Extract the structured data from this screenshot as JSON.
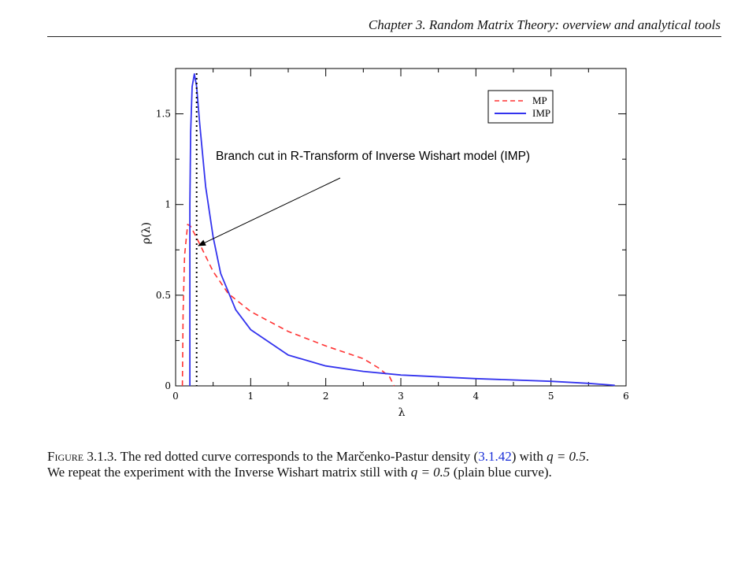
{
  "header": {
    "running_title": "Chapter 3.  Random Matrix Theory: overview and analytical tools"
  },
  "figure": {
    "annotation": "Branch cut in R-Transform of Inverse Wishart model (IMP)",
    "colors": {
      "mp": "#ff3333",
      "imp": "#3333ee",
      "branch_cut": "#000000",
      "arrow": "#000000"
    },
    "branch_cut_x": 0.28
  },
  "chart_data": {
    "type": "line",
    "title": "",
    "xlabel": "λ",
    "ylabel": "ρ(λ)",
    "xlim": [
      0,
      6
    ],
    "ylim": [
      0,
      1.75
    ],
    "x_ticks": [
      "0",
      "1",
      "2",
      "3",
      "4",
      "5",
      "6"
    ],
    "y_ticks": [
      "0",
      "0.5",
      "1",
      "1.5"
    ],
    "legend_position": "top-right",
    "grid": false,
    "series": [
      {
        "name": "MP",
        "style": "dashed",
        "color": "#ff3333",
        "points": [
          [
            0.09,
            0.0
          ],
          [
            0.1,
            0.4
          ],
          [
            0.12,
            0.72
          ],
          [
            0.16,
            0.89
          ],
          [
            0.2,
            0.88
          ],
          [
            0.3,
            0.8
          ],
          [
            0.5,
            0.63
          ],
          [
            0.7,
            0.51
          ],
          [
            1.0,
            0.41
          ],
          [
            1.5,
            0.3
          ],
          [
            2.0,
            0.22
          ],
          [
            2.5,
            0.15
          ],
          [
            2.7,
            0.1
          ],
          [
            2.85,
            0.05
          ],
          [
            2.91,
            0.0
          ]
        ]
      },
      {
        "name": "IMP",
        "style": "solid",
        "color": "#3333ee",
        "points": [
          [
            0.19,
            0.0
          ],
          [
            0.19,
            1.0
          ],
          [
            0.2,
            1.4
          ],
          [
            0.22,
            1.65
          ],
          [
            0.25,
            1.72
          ],
          [
            0.28,
            1.65
          ],
          [
            0.32,
            1.45
          ],
          [
            0.4,
            1.1
          ],
          [
            0.5,
            0.82
          ],
          [
            0.6,
            0.62
          ],
          [
            0.8,
            0.42
          ],
          [
            1.0,
            0.31
          ],
          [
            1.5,
            0.17
          ],
          [
            2.0,
            0.11
          ],
          [
            2.5,
            0.08
          ],
          [
            3.0,
            0.06
          ],
          [
            4.0,
            0.04
          ],
          [
            5.0,
            0.025
          ],
          [
            5.5,
            0.014
          ],
          [
            5.85,
            0.003
          ]
        ]
      }
    ]
  },
  "caption": {
    "label": "Figure 3.1.3.",
    "part1": " The red dotted curve corresponds to the Marčenko-Pastur density (",
    "ref": "3.1.42",
    "part2": ") with ",
    "q1": "q = 0.5",
    "part3": ".",
    "line2_start": "We repeat the experiment with the Inverse Wishart matrix still with ",
    "q2": "q = 0.5",
    "line2_end": " (plain blue curve)."
  }
}
